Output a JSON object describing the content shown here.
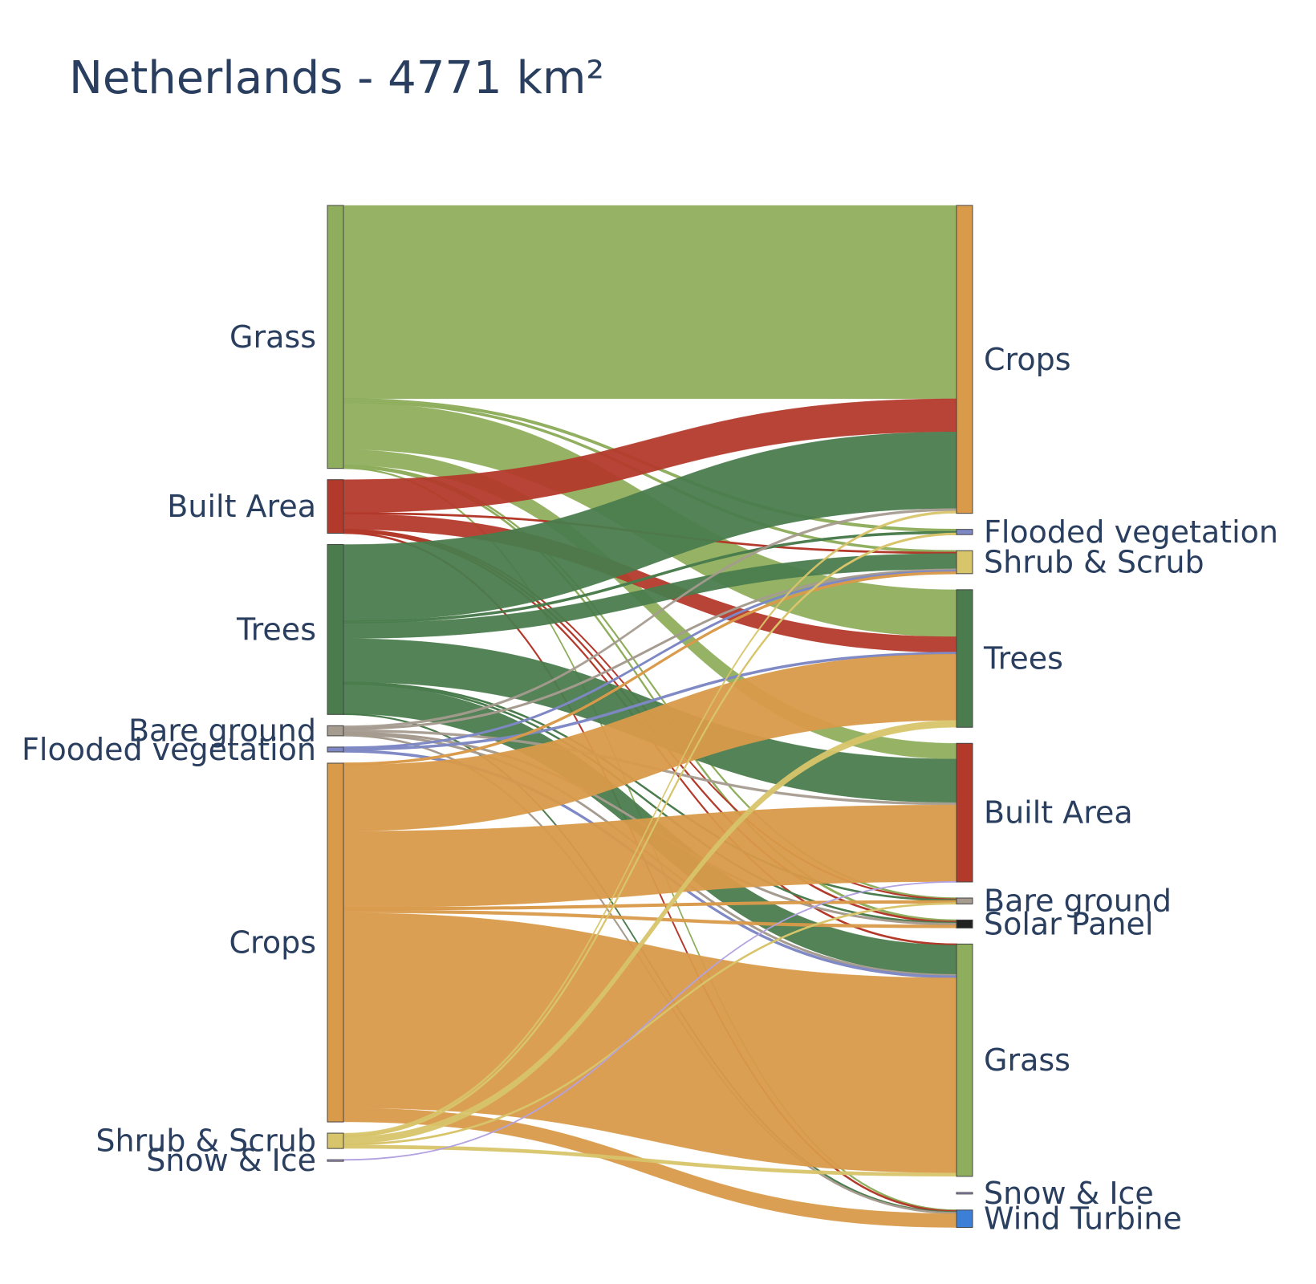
{
  "chart_data": {
    "type": "sankey",
    "title": "Netherlands - 4771 km²",
    "colors": {
      "Grass": "#8fae5d",
      "Built Area": "#b33a2b",
      "Trees": "#4a7c4d",
      "Bare ground": "#a59b8f",
      "Flooded vegetation": "#7e88c4",
      "Crops": "#d99a4a",
      "Shrub & Scrub": "#d8c46a",
      "Snow & Ice": "#b3a2e0",
      "Solar Panel": "#222222",
      "Wind Turbine": "#3c7fd6"
    },
    "sources": [
      {
        "name": "Grass",
        "label": "Grass"
      },
      {
        "name": "Built Area",
        "label": "Built Area"
      },
      {
        "name": "Trees",
        "label": "Trees"
      },
      {
        "name": "Bare ground",
        "label": "Bare ground"
      },
      {
        "name": "Flooded vegetation",
        "label": "Flooded vegetation"
      },
      {
        "name": "Crops",
        "label": "Crops"
      },
      {
        "name": "Shrub & Scrub",
        "label": "Shrub & Scrub"
      },
      {
        "name": "Snow & Ice",
        "label": "Snow & Ice"
      }
    ],
    "targets": [
      {
        "name": "Crops",
        "label": "Crops"
      },
      {
        "name": "Flooded vegetation",
        "label": "Flooded vegetation"
      },
      {
        "name": "Shrub & Scrub",
        "label": "Shrub & Scrub"
      },
      {
        "name": "Trees",
        "label": "Trees"
      },
      {
        "name": "Built Area",
        "label": "Built Area"
      },
      {
        "name": "Bare ground",
        "label": "Bare ground"
      },
      {
        "name": "Solar Panel",
        "label": "Solar Panel"
      },
      {
        "name": "Grass",
        "label": "Grass"
      },
      {
        "name": "Snow & Ice",
        "label": "Snow & Ice"
      },
      {
        "name": "Wind Turbine",
        "label": "Wind Turbine"
      }
    ],
    "links": [
      {
        "source": "Grass",
        "target": "Crops",
        "value": 1110
      },
      {
        "source": "Grass",
        "target": "Flooded vegetation",
        "value": 12
      },
      {
        "source": "Grass",
        "target": "Shrub & Scrub",
        "value": 10
      },
      {
        "source": "Grass",
        "target": "Trees",
        "value": 270
      },
      {
        "source": "Grass",
        "target": "Built Area",
        "value": 90
      },
      {
        "source": "Grass",
        "target": "Bare ground",
        "value": 6
      },
      {
        "source": "Grass",
        "target": "Solar Panel",
        "value": 8
      },
      {
        "source": "Grass",
        "target": "Wind Turbine",
        "value": 4
      },
      {
        "source": "Built Area",
        "target": "Crops",
        "value": 190
      },
      {
        "source": "Built Area",
        "target": "Shrub & Scrub",
        "value": 6
      },
      {
        "source": "Built Area",
        "target": "Trees",
        "value": 90
      },
      {
        "source": "Built Area",
        "target": "Bare ground",
        "value": 4
      },
      {
        "source": "Built Area",
        "target": "Solar Panel",
        "value": 6
      },
      {
        "source": "Built Area",
        "target": "Grass",
        "value": 6
      },
      {
        "source": "Built Area",
        "target": "Wind Turbine",
        "value": 6
      },
      {
        "source": "Trees",
        "target": "Crops",
        "value": 440
      },
      {
        "source": "Trees",
        "target": "Flooded vegetation",
        "value": 10
      },
      {
        "source": "Trees",
        "target": "Shrub & Scrub",
        "value": 90
      },
      {
        "source": "Trees",
        "target": "Built Area",
        "value": 250
      },
      {
        "source": "Trees",
        "target": "Bare ground",
        "value": 6
      },
      {
        "source": "Trees",
        "target": "Solar Panel",
        "value": 6
      },
      {
        "source": "Trees",
        "target": "Grass",
        "value": 170
      },
      {
        "source": "Trees",
        "target": "Wind Turbine",
        "value": 4
      },
      {
        "source": "Bare ground",
        "target": "Crops",
        "value": 14
      },
      {
        "source": "Bare ground",
        "target": "Shrub & Scrub",
        "value": 8
      },
      {
        "source": "Bare ground",
        "target": "Built Area",
        "value": 14
      },
      {
        "source": "Bare ground",
        "target": "Solar Panel",
        "value": 8
      },
      {
        "source": "Bare ground",
        "target": "Grass",
        "value": 8
      },
      {
        "source": "Bare ground",
        "target": "Wind Turbine",
        "value": 6
      },
      {
        "source": "Flooded vegetation",
        "target": "Shrub & Scrub",
        "value": 8
      },
      {
        "source": "Flooded vegetation",
        "target": "Trees",
        "value": 10
      },
      {
        "source": "Flooded vegetation",
        "target": "Grass",
        "value": 10
      },
      {
        "source": "Crops",
        "target": "Shrub & Scrub",
        "value": 10
      },
      {
        "source": "Crops",
        "target": "Trees",
        "value": 380
      },
      {
        "source": "Crops",
        "target": "Built Area",
        "value": 440
      },
      {
        "source": "Crops",
        "target": "Bare ground",
        "value": 12
      },
      {
        "source": "Crops",
        "target": "Solar Panel",
        "value": 18
      },
      {
        "source": "Crops",
        "target": "Grass",
        "value": 1120
      },
      {
        "source": "Crops",
        "target": "Wind Turbine",
        "value": 80
      },
      {
        "source": "Shrub & Scrub",
        "target": "Crops",
        "value": 14
      },
      {
        "source": "Shrub & Scrub",
        "target": "Flooded vegetation",
        "value": 8
      },
      {
        "source": "Shrub & Scrub",
        "target": "Trees",
        "value": 40
      },
      {
        "source": "Shrub & Scrub",
        "target": "Bare ground",
        "value": 6
      },
      {
        "source": "Shrub & Scrub",
        "target": "Grass",
        "value": 20
      },
      {
        "source": "Snow & Ice",
        "target": "Built Area",
        "value": 2
      }
    ],
    "target_extra": {
      "Snow & Ice": 2
    }
  }
}
